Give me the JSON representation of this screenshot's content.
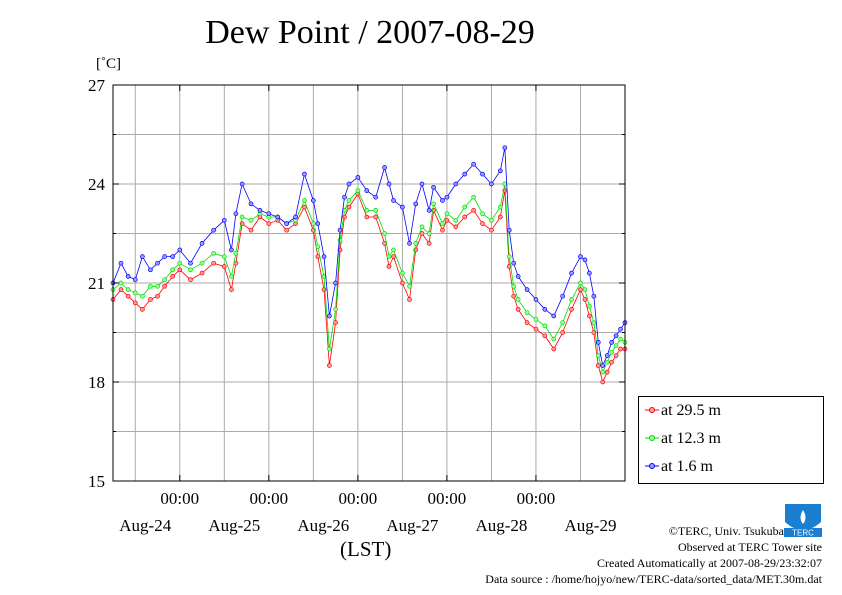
{
  "title": "Dew Point / 2007-08-29",
  "unit": "[˚C]",
  "xlabel": "(LST)",
  "legend": [
    {
      "label": "at 29.5 m",
      "color": "#ff0000",
      "fill": "#ff9999"
    },
    {
      "label": "at 12.3 m",
      "color": "#00dd00",
      "fill": "#99ff99"
    },
    {
      "label": "at 1.6 m",
      "color": "#0000ff",
      "fill": "#9999ff"
    }
  ],
  "footer": {
    "credit": "©TERC, Univ. Tsukuba",
    "observed": "Observed at TERC Tower site",
    "created": "Created Automatically at 2007-08-29/23:32:07",
    "source": "Data source : /home/hojyo/new/TERC-data/sorted_data/MET.30m.dat"
  },
  "logo_text": "TERC",
  "chart_data": {
    "type": "line",
    "title": "Dew Point / 2007-08-29",
    "ylabel": "[˚C]",
    "xlabel": "(LST)",
    "ylim": [
      15,
      27
    ],
    "yticks": [
      15,
      18,
      21,
      24,
      27
    ],
    "xlim": [
      -0.75,
      5.0
    ],
    "xticks_time": [
      {
        "x": 0,
        "label": "00:00"
      },
      {
        "x": 1,
        "label": "00:00"
      },
      {
        "x": 2,
        "label": "00:00"
      },
      {
        "x": 3,
        "label": "00:00"
      },
      {
        "x": 4,
        "label": "00:00"
      }
    ],
    "xticks_day": [
      {
        "x": -0.5,
        "label": "Aug-24"
      },
      {
        "x": 0.5,
        "label": "Aug-25"
      },
      {
        "x": 1.5,
        "label": "Aug-26"
      },
      {
        "x": 2.5,
        "label": "Aug-27"
      },
      {
        "x": 3.5,
        "label": "Aug-28"
      },
      {
        "x": 4.5,
        "label": "Aug-29"
      }
    ],
    "grid": true,
    "legend_position": "bottom-right",
    "x_note": "x in days relative to Aug-25 00:00 LST",
    "series": [
      {
        "name": "at 29.5 m",
        "x": [
          -0.75,
          -0.66,
          -0.58,
          -0.5,
          -0.42,
          -0.33,
          -0.25,
          -0.17,
          -0.08,
          0.0,
          0.12,
          0.25,
          0.38,
          0.5,
          0.58,
          0.63,
          0.7,
          0.8,
          0.9,
          1.0,
          1.1,
          1.2,
          1.3,
          1.4,
          1.5,
          1.55,
          1.62,
          1.68,
          1.75,
          1.8,
          1.85,
          1.9,
          2.0,
          2.1,
          2.2,
          2.3,
          2.35,
          2.4,
          2.5,
          2.58,
          2.65,
          2.72,
          2.8,
          2.85,
          2.95,
          3.0,
          3.1,
          3.2,
          3.3,
          3.4,
          3.5,
          3.6,
          3.65,
          3.7,
          3.75,
          3.8,
          3.9,
          4.0,
          4.1,
          4.2,
          4.3,
          4.4,
          4.5,
          4.55,
          4.6,
          4.65,
          4.7,
          4.75,
          4.8,
          4.85,
          4.9,
          4.95,
          5.0
        ],
        "y": [
          20.5,
          20.8,
          20.6,
          20.4,
          20.2,
          20.5,
          20.6,
          20.9,
          21.2,
          21.4,
          21.1,
          21.3,
          21.6,
          21.5,
          20.8,
          21.6,
          22.8,
          22.6,
          23.0,
          22.8,
          22.9,
          22.6,
          22.8,
          23.3,
          22.6,
          21.8,
          20.8,
          18.5,
          19.8,
          22.0,
          23.0,
          23.3,
          23.7,
          23.0,
          23.0,
          22.2,
          21.5,
          21.8,
          21.0,
          20.5,
          22.0,
          22.5,
          22.2,
          23.2,
          22.6,
          22.9,
          22.7,
          23.0,
          23.2,
          22.8,
          22.6,
          23.0,
          23.8,
          21.5,
          20.6,
          20.2,
          19.8,
          19.6,
          19.4,
          19.0,
          19.5,
          20.2,
          20.8,
          20.5,
          20.0,
          19.5,
          18.5,
          18.0,
          18.3,
          18.6,
          18.8,
          19.0,
          19.0
        ]
      },
      {
        "name": "at 12.3 m",
        "x": [
          -0.75,
          -0.66,
          -0.58,
          -0.5,
          -0.42,
          -0.33,
          -0.25,
          -0.17,
          -0.08,
          0.0,
          0.12,
          0.25,
          0.38,
          0.5,
          0.58,
          0.63,
          0.7,
          0.8,
          0.9,
          1.0,
          1.1,
          1.2,
          1.3,
          1.4,
          1.5,
          1.55,
          1.62,
          1.68,
          1.75,
          1.8,
          1.85,
          1.9,
          2.0,
          2.1,
          2.2,
          2.3,
          2.35,
          2.4,
          2.5,
          2.58,
          2.65,
          2.72,
          2.8,
          2.85,
          2.95,
          3.0,
          3.1,
          3.2,
          3.3,
          3.4,
          3.5,
          3.6,
          3.65,
          3.7,
          3.75,
          3.8,
          3.9,
          4.0,
          4.1,
          4.2,
          4.3,
          4.4,
          4.5,
          4.55,
          4.6,
          4.65,
          4.7,
          4.75,
          4.8,
          4.85,
          4.9,
          4.95,
          5.0
        ],
        "y": [
          20.8,
          21.0,
          20.8,
          20.7,
          20.6,
          20.9,
          20.9,
          21.1,
          21.4,
          21.6,
          21.4,
          21.6,
          21.9,
          21.8,
          21.2,
          21.9,
          23.0,
          22.9,
          23.1,
          23.0,
          23.0,
          22.8,
          22.9,
          23.5,
          22.8,
          22.1,
          21.2,
          19.0,
          20.2,
          22.3,
          23.2,
          23.5,
          23.8,
          23.2,
          23.2,
          22.5,
          21.8,
          22.0,
          21.3,
          20.9,
          22.2,
          22.7,
          22.5,
          23.4,
          22.8,
          23.1,
          22.9,
          23.3,
          23.6,
          23.1,
          22.9,
          23.3,
          24.0,
          21.8,
          20.9,
          20.5,
          20.1,
          19.9,
          19.7,
          19.3,
          19.8,
          20.5,
          21.0,
          20.8,
          20.3,
          19.8,
          18.8,
          18.3,
          18.6,
          18.9,
          19.1,
          19.3,
          19.2
        ]
      },
      {
        "name": "at 1.6 m",
        "x": [
          -0.75,
          -0.66,
          -0.58,
          -0.5,
          -0.42,
          -0.33,
          -0.25,
          -0.17,
          -0.08,
          0.0,
          0.12,
          0.25,
          0.38,
          0.5,
          0.58,
          0.63,
          0.7,
          0.8,
          0.9,
          1.0,
          1.1,
          1.2,
          1.3,
          1.4,
          1.5,
          1.55,
          1.62,
          1.68,
          1.75,
          1.8,
          1.85,
          1.9,
          2.0,
          2.1,
          2.2,
          2.3,
          2.35,
          2.4,
          2.5,
          2.58,
          2.65,
          2.72,
          2.8,
          2.85,
          2.95,
          3.0,
          3.1,
          3.2,
          3.3,
          3.4,
          3.5,
          3.6,
          3.65,
          3.7,
          3.75,
          3.8,
          3.9,
          4.0,
          4.1,
          4.2,
          4.3,
          4.4,
          4.5,
          4.55,
          4.6,
          4.65,
          4.7,
          4.75,
          4.8,
          4.85,
          4.9,
          4.95,
          5.0
        ],
        "y": [
          21.0,
          21.6,
          21.2,
          21.1,
          21.8,
          21.4,
          21.6,
          21.8,
          21.8,
          22.0,
          21.6,
          22.2,
          22.6,
          22.9,
          22.0,
          23.1,
          24.0,
          23.4,
          23.2,
          23.1,
          23.0,
          22.8,
          23.0,
          24.3,
          23.5,
          22.8,
          21.8,
          20.0,
          21.0,
          22.6,
          23.6,
          24.0,
          24.2,
          23.8,
          23.6,
          24.5,
          24.0,
          23.5,
          23.3,
          22.2,
          23.4,
          24.0,
          23.2,
          23.9,
          23.5,
          23.6,
          24.0,
          24.3,
          24.6,
          24.3,
          24.0,
          24.4,
          25.1,
          22.6,
          21.6,
          21.2,
          20.8,
          20.5,
          20.2,
          20.0,
          20.6,
          21.3,
          21.8,
          21.7,
          21.3,
          20.6,
          19.2,
          18.5,
          18.8,
          19.2,
          19.4,
          19.6,
          19.8
        ]
      }
    ]
  }
}
